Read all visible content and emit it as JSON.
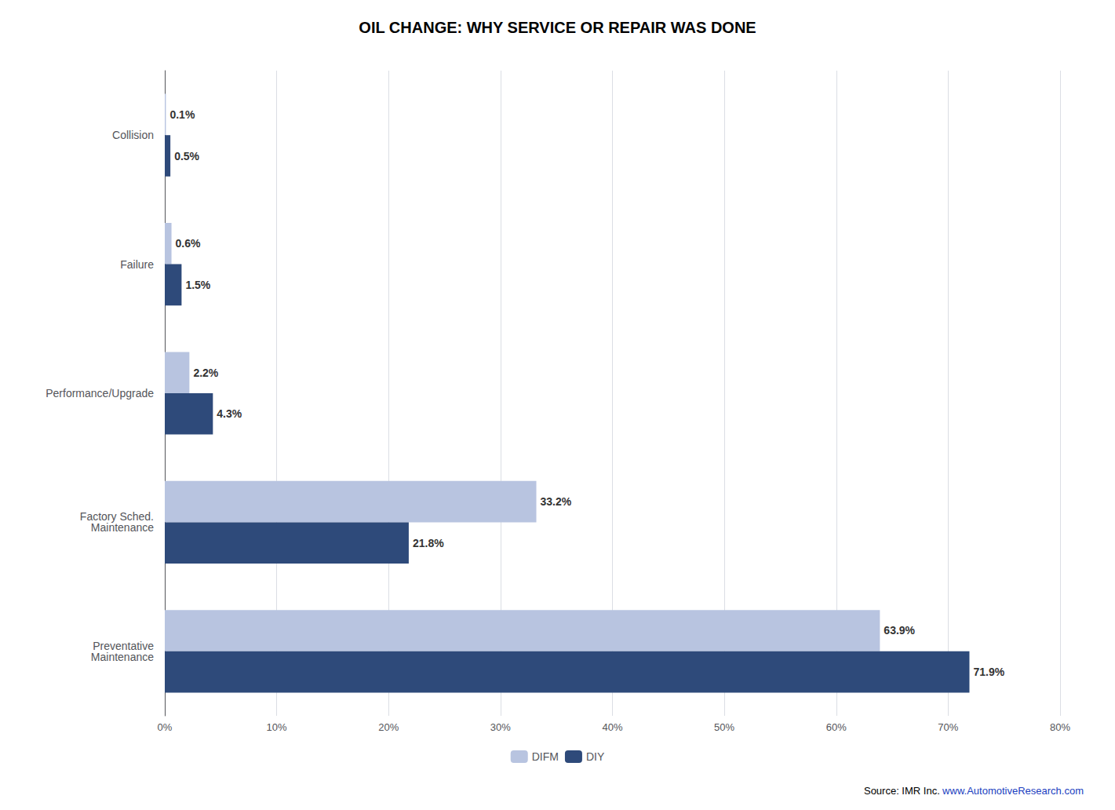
{
  "chart_data": {
    "type": "bar",
    "orientation": "horizontal",
    "title": "OIL CHANGE: WHY SERVICE OR REPAIR WAS DONE",
    "categories": [
      "Collision",
      "Failure",
      "Performance/Upgrade",
      "Factory Sched.\nMaintenance",
      "Preventative\nMaintenance"
    ],
    "series": [
      {
        "name": "DIFM",
        "color": "#b8c4e0",
        "values": [
          0.1,
          0.6,
          2.2,
          33.2,
          63.9
        ],
        "value_labels": [
          "0.1%",
          "0.6%",
          "2.2%",
          "33.2%",
          "63.9%"
        ]
      },
      {
        "name": "DIY",
        "color": "#2e4a7a",
        "values": [
          0.5,
          1.5,
          4.3,
          21.8,
          71.9
        ],
        "value_labels": [
          "0.5%",
          "1.5%",
          "4.3%",
          "21.8%",
          "71.9%"
        ]
      }
    ],
    "xlim": [
      0,
      80
    ],
    "xticks": [
      {
        "value": 0,
        "label": "0%"
      },
      {
        "value": 10,
        "label": "10%"
      },
      {
        "value": 20,
        "label": "20%"
      },
      {
        "value": 30,
        "label": "30%"
      },
      {
        "value": 40,
        "label": "40%"
      },
      {
        "value": 50,
        "label": "50%"
      },
      {
        "value": 60,
        "label": "60%"
      },
      {
        "value": 70,
        "label": "70%"
      },
      {
        "value": 80,
        "label": "80%"
      }
    ],
    "grid": true,
    "legend": "bottom",
    "data_labels": true,
    "annotations": [
      "Source: IMR Inc.",
      "www.AutomotiveResearch.com"
    ]
  }
}
